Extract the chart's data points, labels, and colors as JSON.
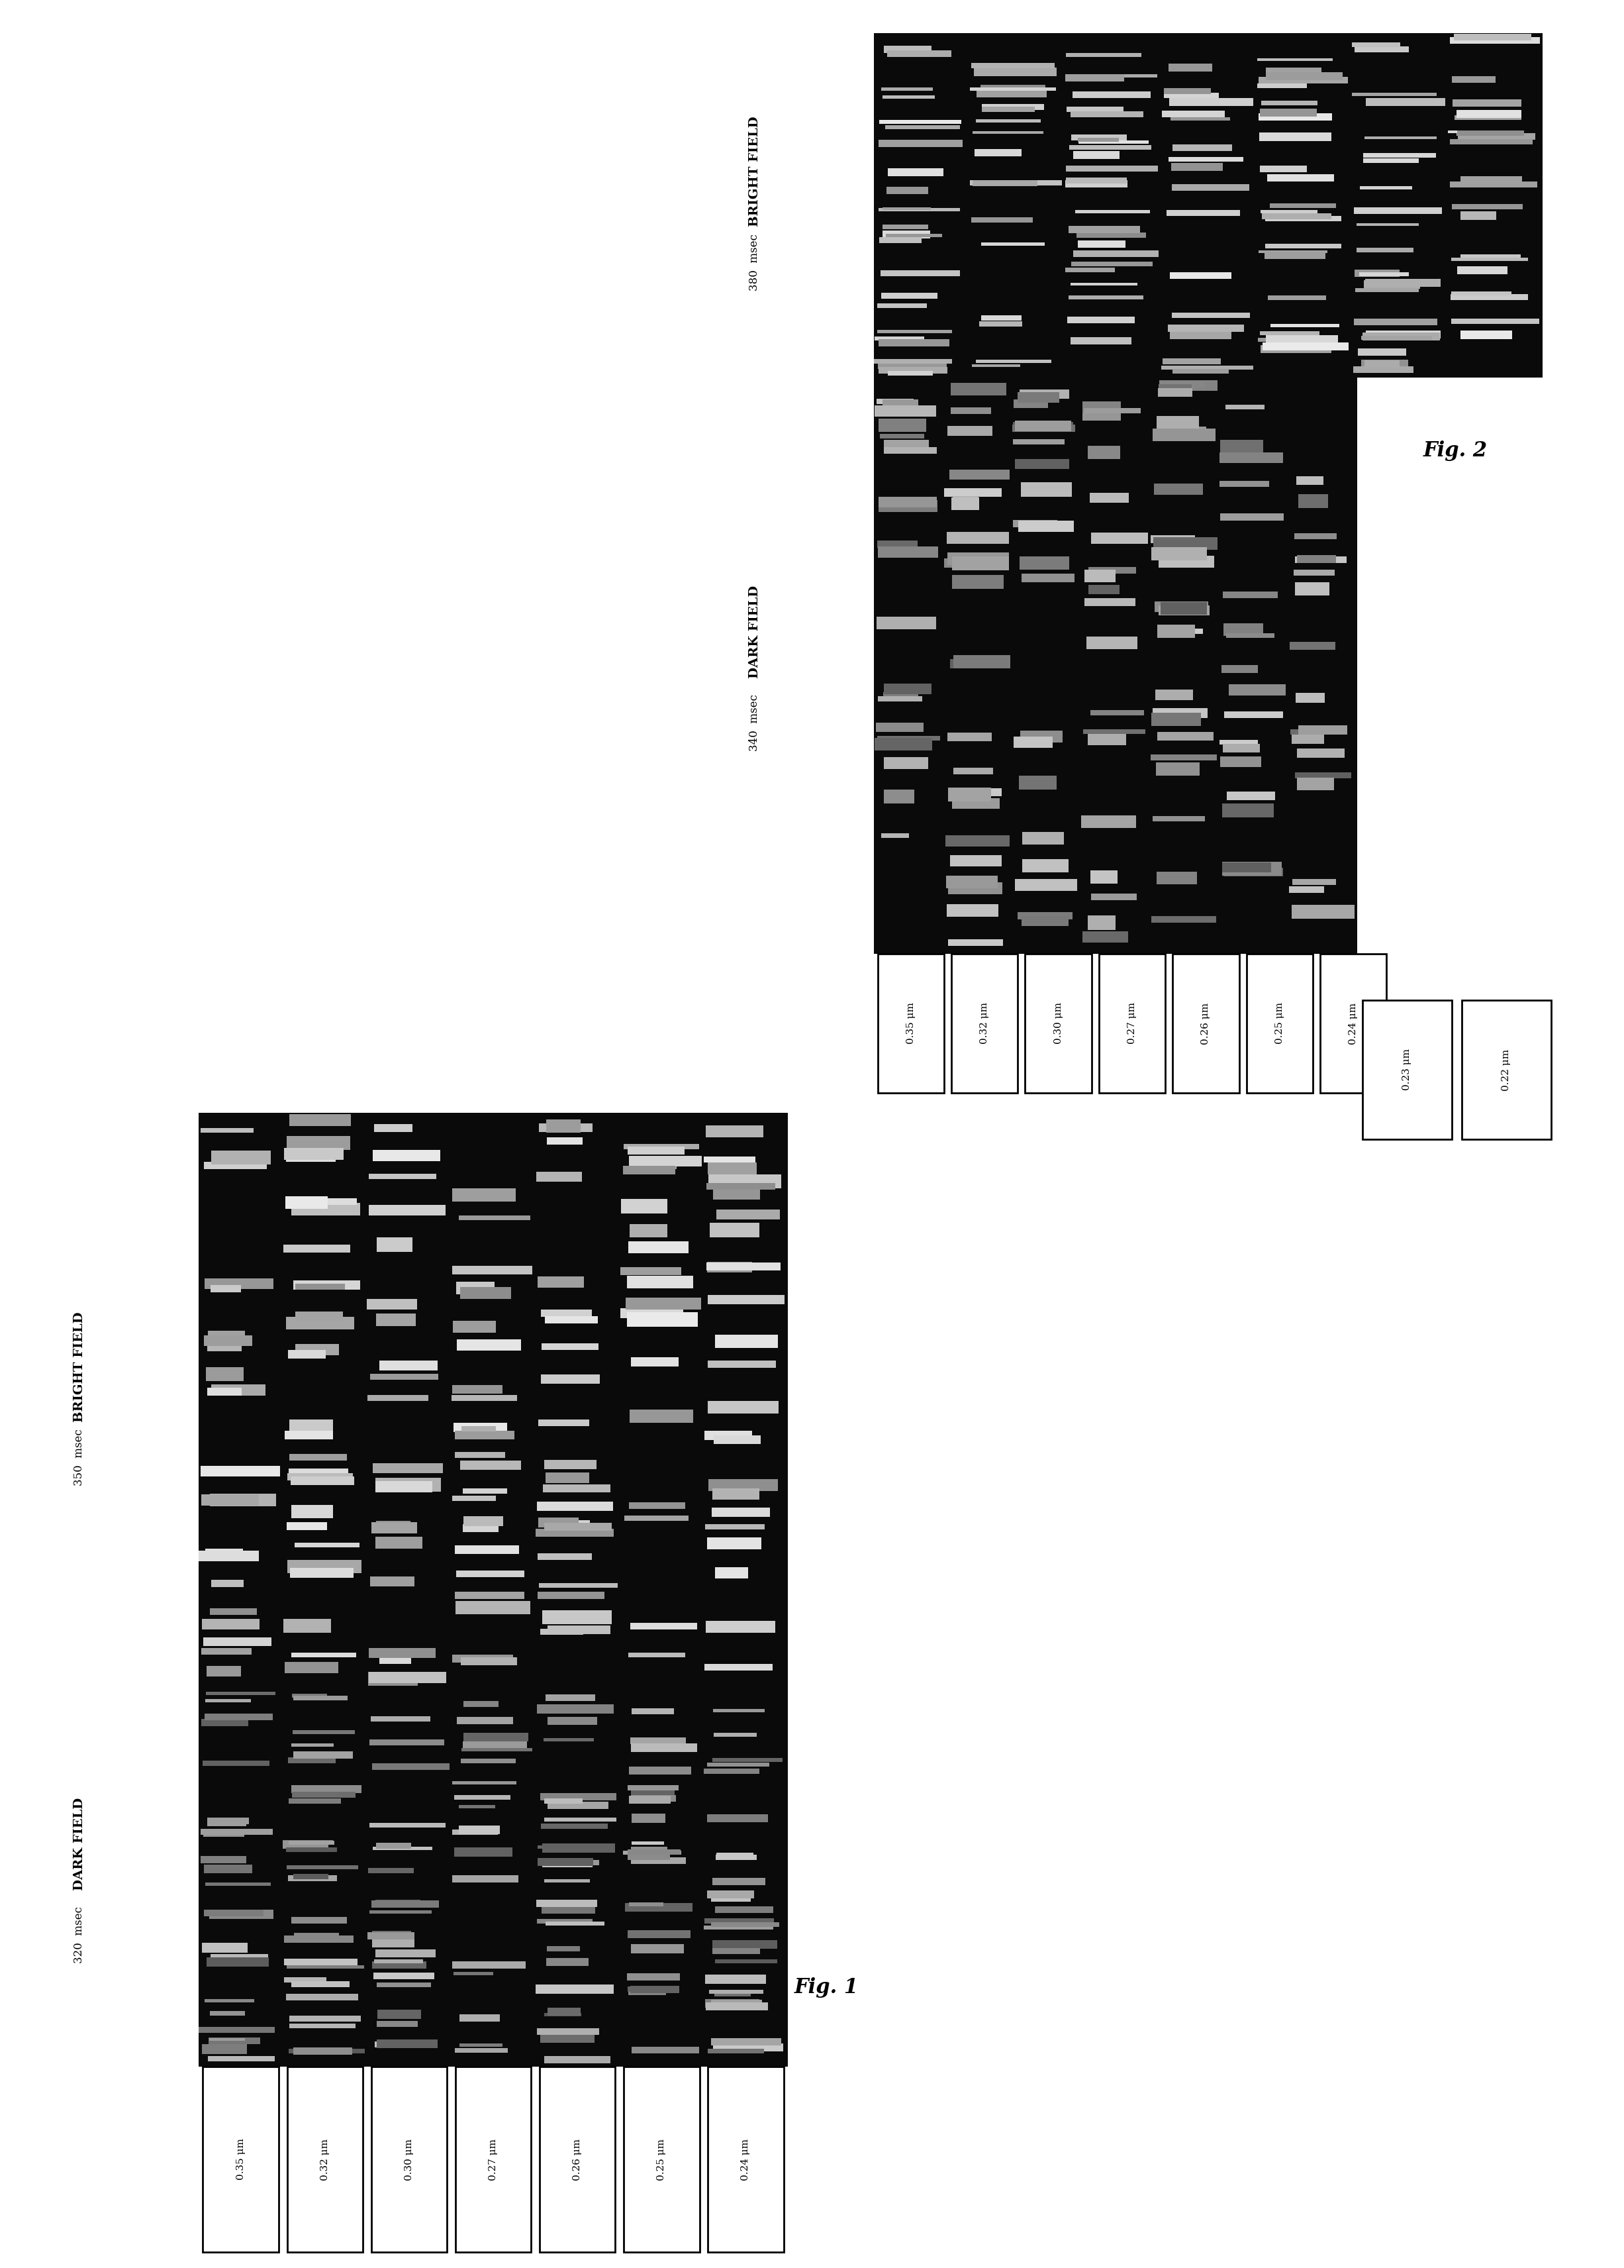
{
  "fig_width": 24.53,
  "fig_height": 34.24,
  "background_color": "#ffffff",
  "fig1": {
    "label": "Fig. 1",
    "dark_field_label1": "DARK FIELD",
    "dark_field_label2": "320  msec",
    "bright_field_label1": "BRIGHT FIELD",
    "bright_field_label2": "350  msec",
    "columns": [
      "0.35 μm",
      "0.32 μm",
      "0.30 μm",
      "0.27 μm",
      "0.26 μm",
      "0.25 μm",
      "0.24 μm"
    ],
    "num_cols": 7
  },
  "fig2": {
    "label": "Fig. 2",
    "dark_field_label1": "DARK FIELD",
    "dark_field_label2": "340  msec",
    "bright_field_label1": "BRIGHT FIELD",
    "bright_field_label2": "380  msec",
    "columns_main": [
      "0.35 μm",
      "0.32 μm",
      "0.30 μm",
      "0.27 μm",
      "0.26 μm",
      "0.25 μm",
      "0.24 μm"
    ],
    "columns_extra": [
      "0.23 μm",
      "0.22 μm"
    ],
    "num_cols_main": 7,
    "num_cols_bright_extra": 2
  }
}
